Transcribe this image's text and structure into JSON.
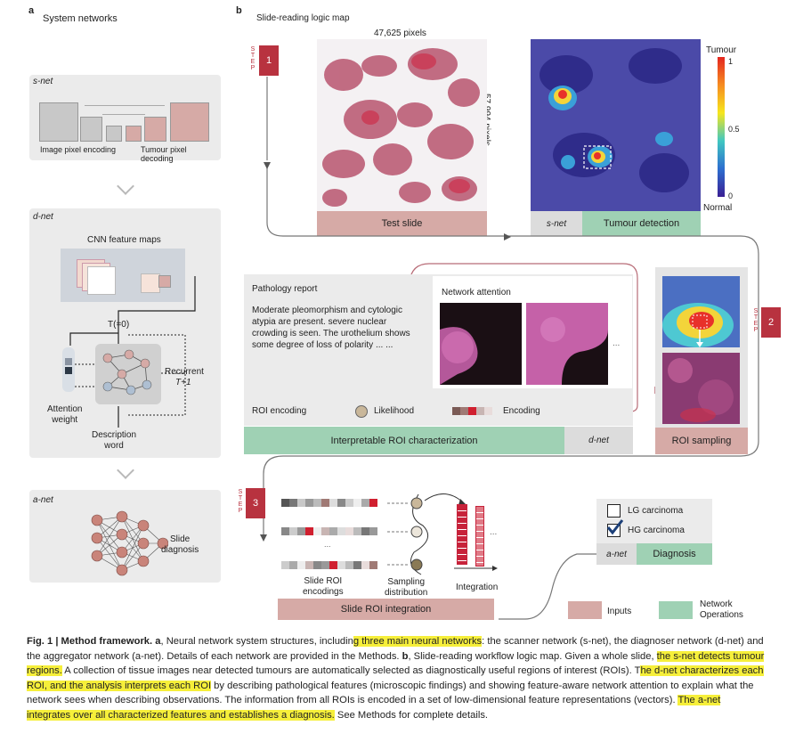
{
  "panel_a": {
    "letter": "a",
    "title": "System networks",
    "snet": {
      "name": "s-net",
      "left_label": "Image pixel encoding",
      "right_label": "Tumour pixel decoding"
    },
    "dnet": {
      "name": "d-net",
      "feature_maps": "CNN feature maps",
      "t0": "T(=0)",
      "recurrent": "Recurrent",
      "t_plus": "T+1",
      "attention": "Attention\nweight",
      "description": "Description\nword"
    },
    "anet": {
      "name": "a-net",
      "diagnosis": "Slide\ndiagnosis"
    }
  },
  "panel_b": {
    "letter": "b",
    "title": "Slide-reading logic map",
    "width_label": "47,625 pixels",
    "height_label": "57,994 pixels",
    "step_word": "STEP",
    "steps": [
      "1",
      "2",
      "3"
    ],
    "test_slide": "Test slide",
    "snet_tag": "s-net",
    "tumour_detection": "Tumour detection",
    "colorbar": {
      "top_label": "Tumour",
      "ticks": [
        "1",
        "0.5",
        "0"
      ],
      "bottom_label": "Normal"
    },
    "pathology_report": {
      "title": "Pathology report",
      "text": "Moderate pleomorphism and cytologic atypia are present. severe nuclear crowding is seen. The urothelium shows some degree of loss of polarity ... ..."
    },
    "network_attention": "Network attention",
    "ellipsis": "...",
    "roi_encoding": "ROI encoding",
    "likelihood": "Likelihood",
    "encoding": "Encoding",
    "interpretable": "Interpretable ROI characterization",
    "dnet_tag": "d-net",
    "roi_sampling": "ROI sampling",
    "slide_roi_encodings": "Slide ROI\nencodings",
    "sampling_distribution": "Sampling\ndistribution",
    "integration": "Integration",
    "slide_roi_integration": "Slide ROI integration",
    "lg": "LG carcinoma",
    "hg": "HG carcinoma",
    "anet_tag": "a-net",
    "diagnosis": "Diagnosis",
    "legend": {
      "inputs": "Inputs",
      "network_operations": "Network\nOperations"
    }
  },
  "colors": {
    "red": "#b8323f",
    "pink": "#d6aaa6",
    "green": "#9fd1b4",
    "panel": "#ebebeb",
    "highlight": "#f6ef3a"
  },
  "caption": {
    "lead": "Fig. 1 | Method framework.",
    "a_letter": "a",
    "s1": ", Neural network system structures, includin",
    "h1": "g three main neural networks",
    "s2": ": the scanner network (s-net), the diagnoser network (d-net) and the aggregator network (a-net). Details of each network are provided in the Methods. ",
    "b_letter": "b",
    "s3": ", Slide-reading workflow logic map. Given a whole slide, ",
    "h2": "the s-net detects tumour regions.",
    "s4": " A collection of tissue images near detected tumours are automatically selected as diagnostically useful regions of interest (ROIs). T",
    "h3": "he d-net characterizes each ROI, and the analysis interprets each ROI",
    "s5": " by describing pathological features (microscopic findings) and showing feature-aware network attention to explain what the network sees when describing observations. The information from all ROIs is encoded in a set of low-dimensional feature representations (vectors). ",
    "h4": "The a-net integrates over all characterized features and establishes a diagnosis.",
    "s6": " See Methods for complete details."
  }
}
